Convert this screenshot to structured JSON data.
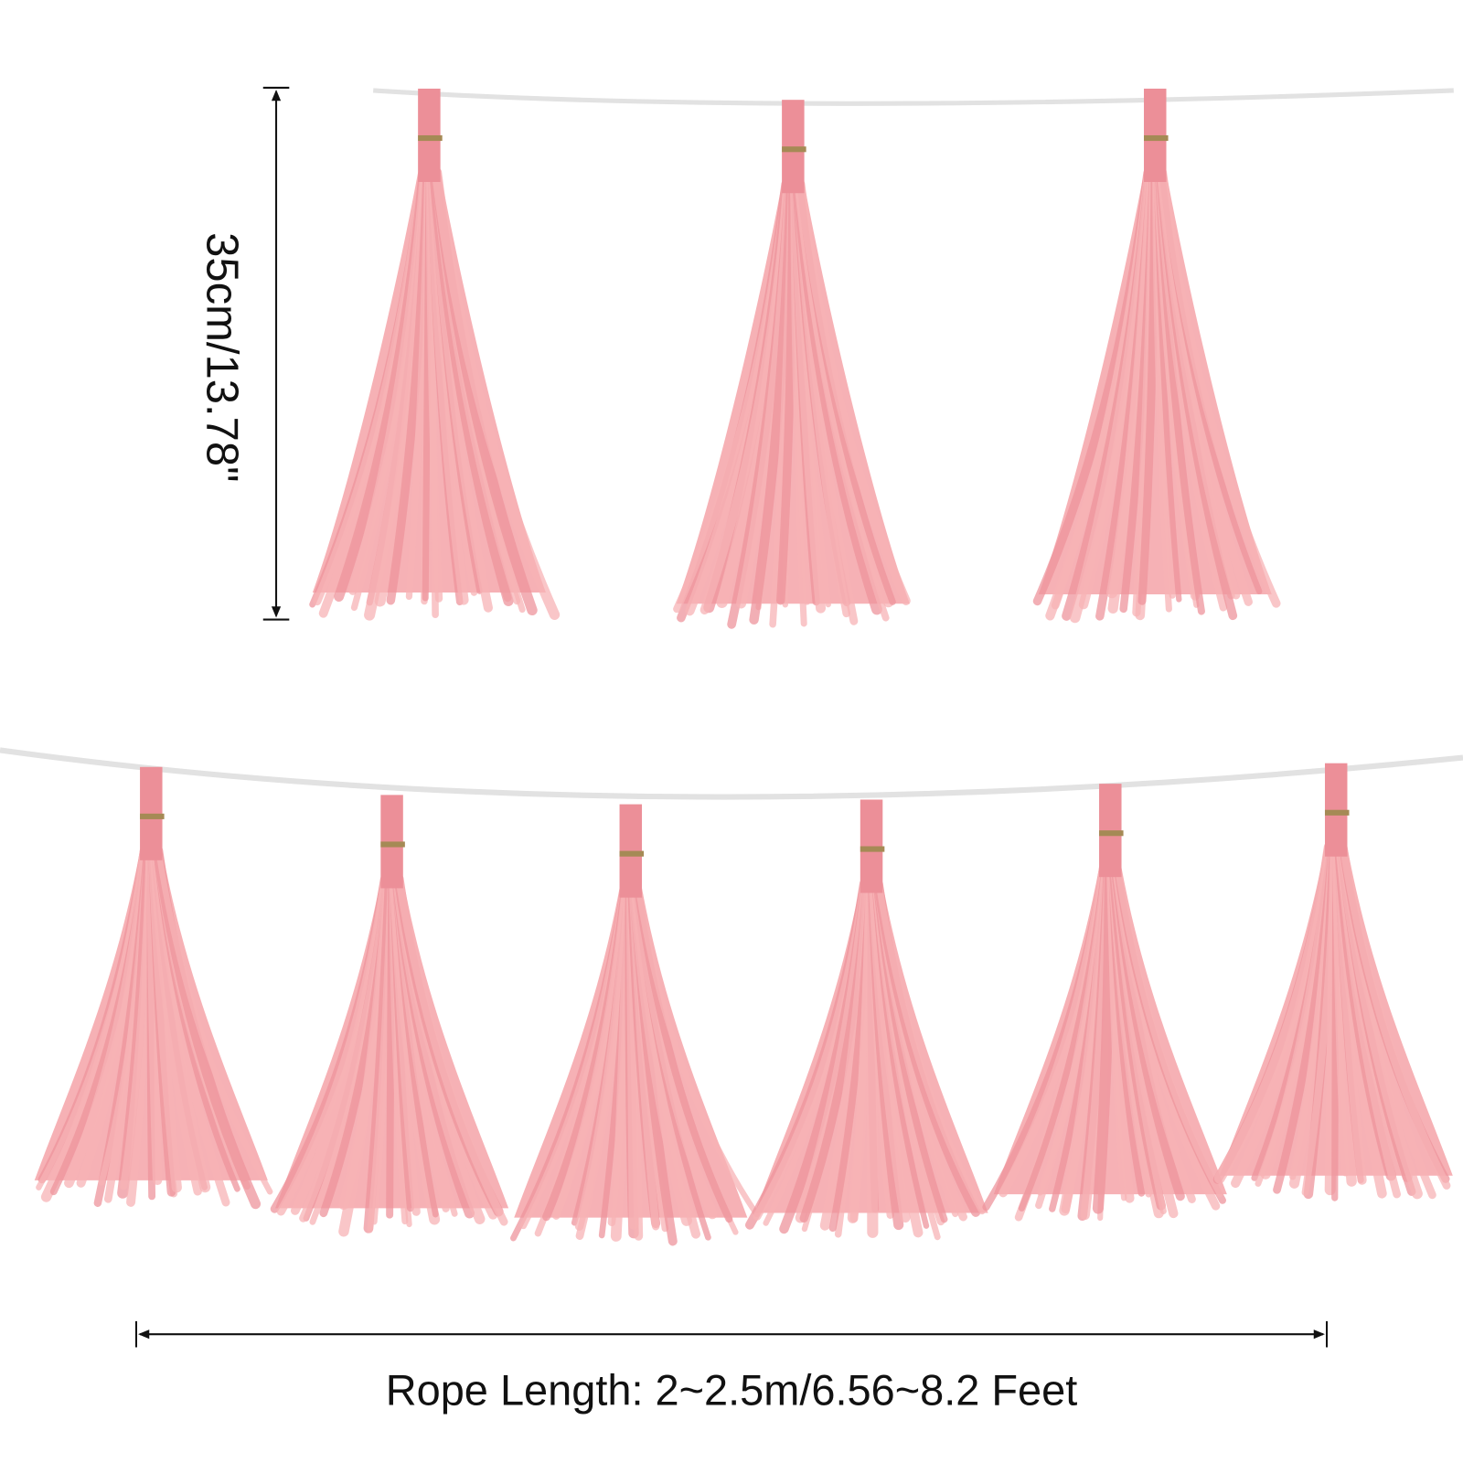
{
  "product": {
    "tassel_color": "#f4a3a8",
    "tab_color": "#ec8f98",
    "rope_color": "#e2e2e2",
    "clip_color": "#a58a55",
    "tassel_count_top_row": 3,
    "tassel_count_bottom_row": 6
  },
  "dimensions": {
    "tassel_length_label": "35cm/13.78\"",
    "rope_length_label": "Rope Length: 2~2.5m/6.56~8.2 Feet"
  }
}
